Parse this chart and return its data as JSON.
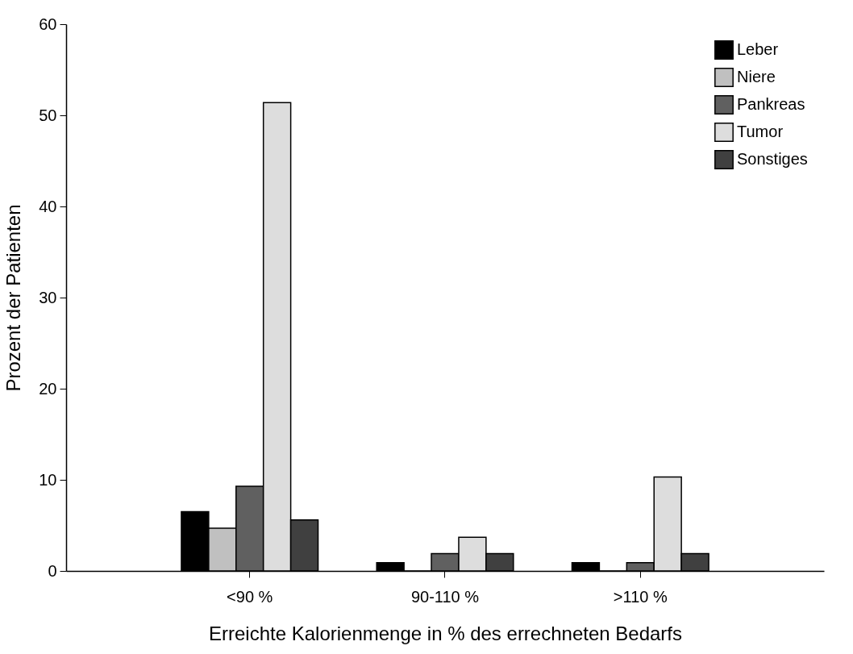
{
  "chart_data": {
    "type": "bar",
    "xlabel": "Erreichte Kalorienmenge in % des errechneten Bedarfs",
    "ylabel": "Prozent der Patienten",
    "categories": [
      "<90 %",
      "90-110 %",
      ">110 %"
    ],
    "series": [
      {
        "name": "Leber",
        "color": "#000000",
        "values": [
          6.5,
          0.9,
          0.9
        ]
      },
      {
        "name": "Niere",
        "color": "#c0c0c0",
        "values": [
          4.7,
          0,
          0
        ]
      },
      {
        "name": "Pankreas",
        "color": "#606060",
        "values": [
          9.3,
          1.9,
          0.9
        ]
      },
      {
        "name": "Tumor",
        "color": "#dddddd",
        "values": [
          51.4,
          3.7,
          10.3
        ]
      },
      {
        "name": "Sonstiges",
        "color": "#404040",
        "values": [
          5.6,
          1.9,
          1.9
        ]
      }
    ],
    "ylim": [
      0,
      60
    ],
    "yticks": [
      0,
      10,
      20,
      30,
      40,
      50,
      60
    ],
    "grid": false,
    "legend": "top right"
  }
}
